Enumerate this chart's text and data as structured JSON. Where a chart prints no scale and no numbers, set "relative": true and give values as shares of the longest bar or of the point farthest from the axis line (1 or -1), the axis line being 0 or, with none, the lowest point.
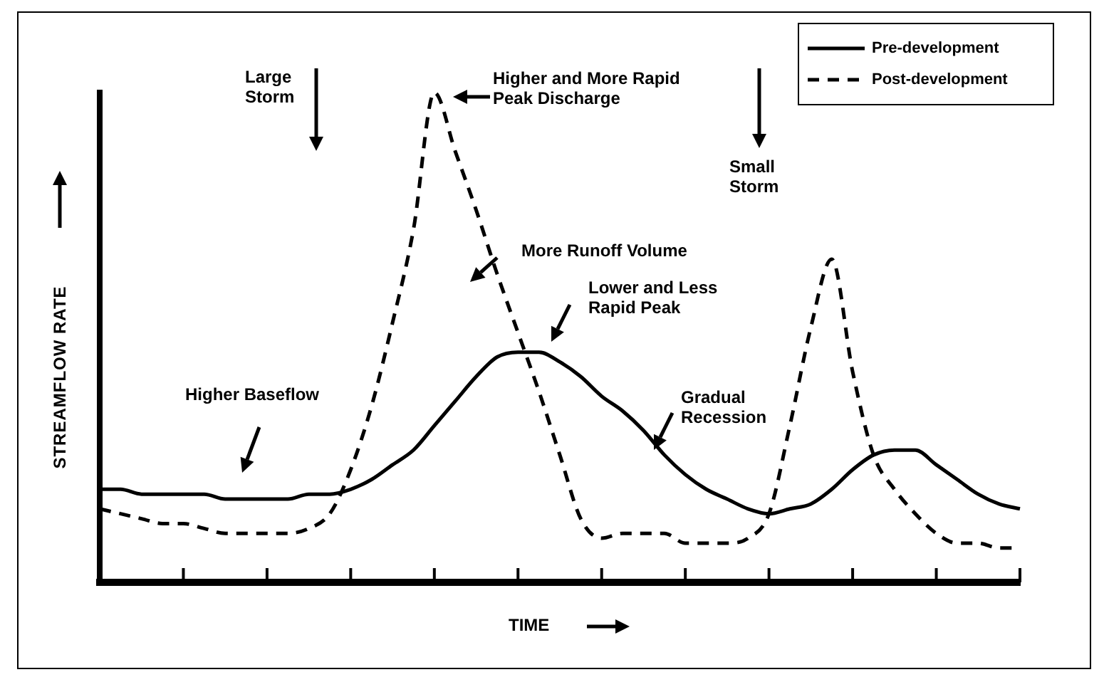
{
  "chart_data": {
    "type": "line",
    "relative": true,
    "xlabel": "TIME",
    "ylabel": "STREAMFLOW RATE",
    "legend": "top right",
    "categories": [
      null,
      null,
      null,
      null,
      null,
      null,
      null,
      null,
      null,
      null,
      null,
      null,
      null,
      null,
      null,
      null,
      null,
      null,
      null,
      null,
      null,
      null,
      null,
      null,
      null,
      null,
      null,
      null,
      null,
      null,
      null,
      null,
      null,
      null,
      null,
      null,
      null,
      null,
      null,
      null,
      null,
      null,
      null,
      null,
      null
    ],
    "series": [
      {
        "name": "Pre-development",
        "color": "#000000",
        "line_style": "solid",
        "values": [
          0.19,
          0.19,
          0.18,
          0.18,
          0.18,
          0.18,
          0.17,
          0.17,
          0.17,
          0.17,
          0.18,
          0.18,
          0.19,
          0.21,
          0.24,
          0.27,
          0.32,
          0.37,
          0.42,
          0.46,
          0.47,
          0.47,
          0.45,
          0.42,
          0.38,
          0.35,
          0.31,
          0.26,
          0.22,
          0.19,
          0.17,
          0.15,
          0.14,
          0.15,
          0.16,
          0.19,
          0.23,
          0.26,
          0.27,
          0.27,
          0.24,
          0.21,
          0.18,
          0.16,
          0.15
        ]
      },
      {
        "name": "Post-development",
        "color": "#000000",
        "line_style": "dashed",
        "values": [
          0.15,
          0.14,
          0.13,
          0.12,
          0.12,
          0.11,
          0.1,
          0.1,
          0.1,
          0.1,
          0.11,
          0.14,
          0.23,
          0.36,
          0.53,
          0.72,
          1,
          0.88,
          0.76,
          0.63,
          0.51,
          0.39,
          0.26,
          0.13,
          0.09,
          0.1,
          0.1,
          0.1,
          0.08,
          0.08,
          0.08,
          0.09,
          0.14,
          0.32,
          0.52,
          0.66,
          0.43,
          0.26,
          0.19,
          0.14,
          0.1,
          0.08,
          0.08,
          0.07,
          0.07
        ]
      }
    ],
    "annotations": [
      "Large Storm",
      "Higher and More Rapid Peak Discharge",
      "Small Storm",
      "More Runoff Volume",
      "Lower and Less Rapid Peak",
      "Higher Baseflow",
      "Gradual Recession"
    ]
  }
}
